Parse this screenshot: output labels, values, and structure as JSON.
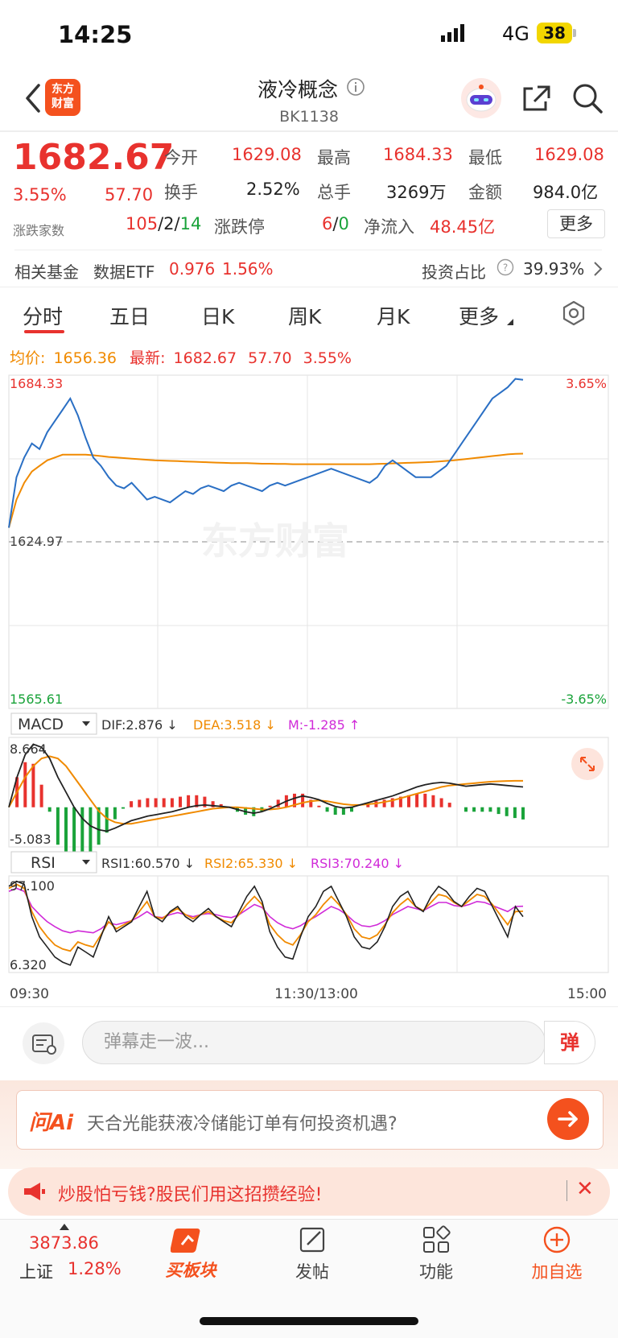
{
  "status": {
    "time": "14:25",
    "network": "4G",
    "battery": "38"
  },
  "header": {
    "logo_text_1": "东方",
    "logo_text_2": "财富",
    "title": "液冷概念",
    "code": "BK1138"
  },
  "quote": {
    "price": "1682.67",
    "pct": "3.55%",
    "change": "57.70",
    "open_label": "今开",
    "open": "1629.08",
    "high_label": "最高",
    "high": "1684.33",
    "low_label": "最低",
    "low": "1629.08",
    "turnover_label": "换手",
    "turnover": "2.52%",
    "volume_label": "总手",
    "volume": "3269万",
    "amount_label": "金额",
    "amount": "984.0亿",
    "count_label": "涨跌家数",
    "up": "105",
    "sep1": "/",
    "flat": "2",
    "sep2": "/",
    "down": "14",
    "limit_label": "涨跌停",
    "limit_up": "6",
    "limit_sep": "/",
    "limit_down": "0",
    "inflow_label": "净流入",
    "inflow": "48.45亿",
    "more": "更多"
  },
  "fund": {
    "label": "相关基金",
    "etf_label": "数据ETF",
    "etf_price": "0.976",
    "etf_pct": "1.56%",
    "ratio_label": "投资占比",
    "ratio": "39.93%"
  },
  "tabs": [
    "分时",
    "五日",
    "日K",
    "周K",
    "月K",
    "更多"
  ],
  "avg_row": {
    "avg_label": "均价:",
    "avg": "1656.36",
    "latest_label": "最新:",
    "latest": "1682.67",
    "chg": "57.70",
    "pct": "3.55%"
  },
  "chart_data": {
    "type": "line",
    "axis": {
      "top_left": "1684.33",
      "top_right": "3.65%",
      "mid": "1624.97",
      "bottom_left": "1565.61",
      "bottom_right": "-3.65%"
    },
    "watermark": "东方财富",
    "ylim": [
      1565.61,
      1684.33
    ],
    "base": 1624.97,
    "price": [
      1630,
      1648,
      1655,
      1660,
      1658,
      1664,
      1668,
      1672,
      1676,
      1670,
      1662,
      1655,
      1652,
      1648,
      1645,
      1644,
      1646,
      1643,
      1640,
      1641,
      1640,
      1639,
      1641,
      1643,
      1642,
      1644,
      1645,
      1644,
      1643,
      1645,
      1646,
      1645,
      1644,
      1643,
      1645,
      1646,
      1645,
      1646,
      1647,
      1648,
      1649,
      1650,
      1651,
      1650,
      1649,
      1648,
      1647,
      1646,
      1648,
      1652,
      1654,
      1652,
      1650,
      1648,
      1648,
      1648,
      1650,
      1652,
      1656,
      1660,
      1664,
      1668,
      1672,
      1676,
      1678,
      1680,
      1683,
      1682.67
    ],
    "avg": [
      1630,
      1640,
      1646,
      1650,
      1652,
      1654,
      1655,
      1656,
      1656,
      1656,
      1656,
      1655.8,
      1655.5,
      1655.2,
      1655,
      1654.8,
      1654.6,
      1654.4,
      1654.2,
      1654,
      1653.9,
      1653.8,
      1653.7,
      1653.6,
      1653.5,
      1653.4,
      1653.3,
      1653.2,
      1653.1,
      1653,
      1653,
      1653,
      1652.9,
      1652.8,
      1652.8,
      1652.7,
      1652.7,
      1652.6,
      1652.6,
      1652.6,
      1652.6,
      1652.6,
      1652.6,
      1652.6,
      1652.6,
      1652.6,
      1652.6,
      1652.6,
      1652.7,
      1652.8,
      1652.9,
      1653,
      1653.1,
      1653.2,
      1653.3,
      1653.4,
      1653.6,
      1653.8,
      1654,
      1654.3,
      1654.6,
      1654.9,
      1655.2,
      1655.5,
      1655.8,
      1656.1,
      1656.3,
      1656.36
    ],
    "macd": {
      "label": "MACD",
      "dif_label": "DIF:2.876 ↓",
      "dea_label": "DEA:3.518 ↓",
      "m_label": "M:-1.285 ↑",
      "top": "8.664",
      "bottom": "-5.083",
      "ylim": [
        -5.083,
        8.664
      ],
      "dif": [
        0,
        4,
        7,
        8.4,
        8,
        6.5,
        4,
        2,
        0,
        -1.5,
        -2.5,
        -3,
        -3.2,
        -2.8,
        -2.3,
        -1.8,
        -1.5,
        -1.2,
        -1,
        -0.8,
        -0.6,
        -0.3,
        0,
        0.2,
        0.3,
        0.2,
        0.1,
        0,
        -0.3,
        -0.6,
        -0.8,
        -0.6,
        -0.2,
        0.3,
        0.8,
        1.2,
        1.5,
        1.3,
        1,
        0.5,
        0.1,
        -0.1,
        0,
        0.3,
        0.6,
        0.9,
        1.2,
        1.5,
        1.9,
        2.3,
        2.7,
        3,
        3.2,
        3.3,
        3.2,
        3,
        2.8,
        2.9,
        3,
        3.1,
        3,
        2.9,
        2.8,
        2.7
      ],
      "dea": [
        0,
        2,
        4,
        5.5,
        6.5,
        6.8,
        6.5,
        5.5,
        4,
        2.5,
        1,
        -0.5,
        -1.5,
        -2,
        -2.2,
        -2.2,
        -2,
        -1.8,
        -1.6,
        -1.4,
        -1.2,
        -1,
        -0.8,
        -0.6,
        -0.4,
        -0.2,
        -0.1,
        0,
        0,
        -0.1,
        -0.2,
        -0.3,
        -0.3,
        -0.2,
        0,
        0.3,
        0.6,
        0.8,
        0.9,
        0.8,
        0.6,
        0.4,
        0.3,
        0.3,
        0.4,
        0.5,
        0.7,
        0.9,
        1.2,
        1.5,
        1.8,
        2.1,
        2.4,
        2.7,
        2.9,
        3,
        3.1,
        3.2,
        3.3,
        3.4,
        3.45,
        3.5,
        3.52,
        3.518
      ]
    },
    "rsi": {
      "label": "RSI",
      "rsi1_label": "RSI1:60.570 ↓",
      "rsi2_label": "RSI2:65.330 ↓",
      "rsi3_label": "RSI3:70.240 ↓",
      "top": "97.100",
      "bottom": "6.320",
      "ylim": [
        6.32,
        97.1
      ],
      "rsi1": [
        90,
        95,
        92,
        60,
        40,
        30,
        20,
        15,
        12,
        30,
        25,
        20,
        40,
        60,
        45,
        50,
        55,
        70,
        85,
        60,
        55,
        65,
        70,
        60,
        55,
        62,
        68,
        60,
        55,
        50,
        65,
        80,
        90,
        75,
        45,
        30,
        20,
        18,
        40,
        60,
        70,
        85,
        90,
        75,
        60,
        40,
        30,
        28,
        35,
        50,
        70,
        80,
        85,
        70,
        65,
        80,
        90,
        85,
        75,
        70,
        80,
        88,
        85,
        70,
        55,
        40,
        70,
        60
      ],
      "rsi2": [
        88,
        92,
        88,
        65,
        50,
        40,
        32,
        28,
        26,
        35,
        32,
        30,
        42,
        55,
        48,
        52,
        56,
        65,
        75,
        60,
        58,
        64,
        68,
        62,
        58,
        62,
        65,
        60,
        56,
        54,
        62,
        72,
        80,
        72,
        52,
        42,
        35,
        32,
        42,
        55,
        62,
        72,
        80,
        72,
        62,
        48,
        40,
        38,
        42,
        52,
        64,
        72,
        78,
        70,
        66,
        74,
        82,
        80,
        74,
        70,
        76,
        82,
        80,
        72,
        62,
        52,
        65,
        65.33
      ],
      "rsi3": [
        85,
        88,
        85,
        70,
        62,
        55,
        50,
        46,
        44,
        46,
        45,
        44,
        48,
        54,
        52,
        54,
        56,
        60,
        65,
        60,
        59,
        62,
        64,
        62,
        60,
        62,
        63,
        62,
        60,
        59,
        62,
        67,
        72,
        69,
        60,
        54,
        50,
        48,
        51,
        56,
        60,
        65,
        70,
        67,
        62,
        55,
        51,
        50,
        52,
        56,
        62,
        66,
        70,
        68,
        66,
        70,
        74,
        74,
        71,
        70,
        72,
        75,
        74,
        71,
        68,
        65,
        70,
        70.24
      ]
    },
    "x_labels": [
      "09:30",
      "11:30/13:00",
      "15:00"
    ]
  },
  "danmu": {
    "placeholder": "弹幕走一波...",
    "send": "弹"
  },
  "ai": {
    "logo": "问Ai",
    "question": "天合光能获液冷储能订单有何投资机遇?"
  },
  "promo": {
    "text": "炒股怕亏钱?股民们用这招攒经验!",
    "close": "✕"
  },
  "nav": {
    "index_value": "3873.86",
    "index_name": "上证",
    "index_pct": "1.28%",
    "buy_block": "买板块",
    "post": "发帖",
    "function": "功能",
    "add": "加自选"
  },
  "colors": {
    "up": "#e8322e",
    "down": "#1aa33a",
    "price_line": "#2a6fc4",
    "avg_line": "#f08a00",
    "brand": "#f4511e"
  }
}
